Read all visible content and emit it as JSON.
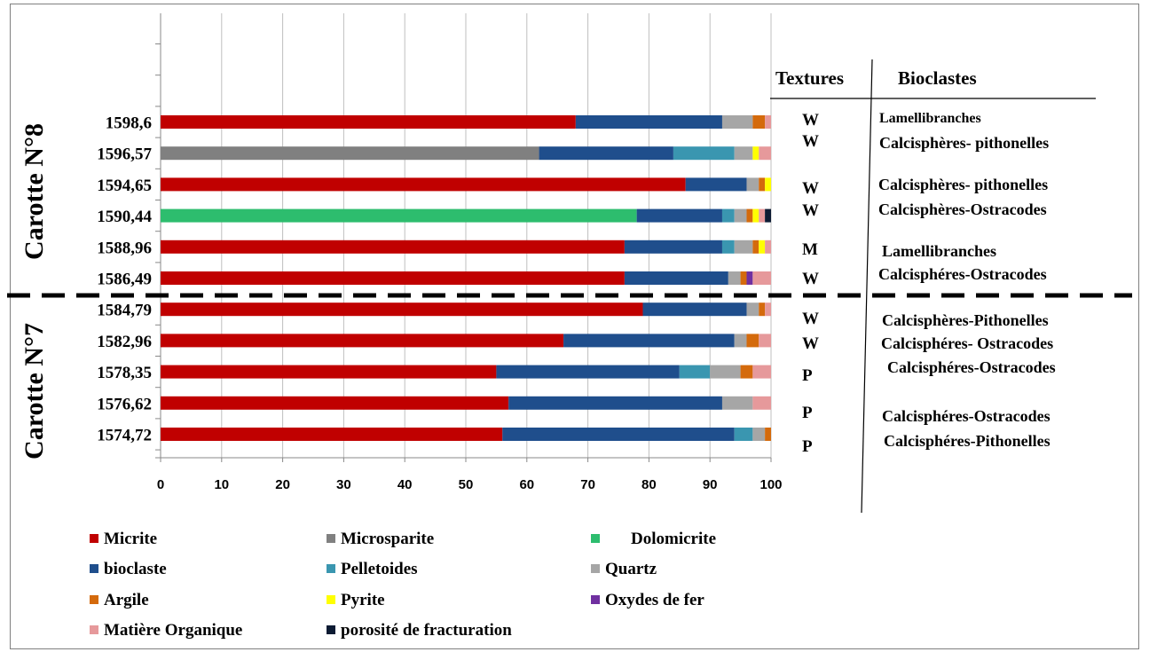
{
  "chart_data": {
    "type": "bar",
    "orientation": "horizontal",
    "stacked": true,
    "categories": [
      "1598,6",
      "1596,57",
      "1594,65",
      "1590,44",
      "1588,96",
      "1586,49",
      "1584,79",
      "1582,96",
      "1578,35",
      "1576,62",
      "1574,72"
    ],
    "xlim": [
      0,
      100
    ],
    "xticks": [
      "0",
      "10",
      "20",
      "30",
      "40",
      "50",
      "60",
      "70",
      "80",
      "90",
      "100"
    ],
    "grid": "vertical",
    "legend_position": "bottom",
    "series": [
      {
        "name": "Micrite",
        "color": "#c00000",
        "values": [
          68,
          0,
          86,
          0,
          76,
          76,
          79,
          66,
          55,
          57,
          56
        ]
      },
      {
        "name": "Microsparite",
        "color": "#808080",
        "values": [
          0,
          62,
          0,
          0,
          0,
          0,
          0,
          0,
          0,
          0,
          0
        ]
      },
      {
        "name": "Dolomicrite",
        "color": "#2dbd6e",
        "values": [
          0,
          0,
          0,
          78,
          0,
          0,
          0,
          0,
          0,
          0,
          0
        ]
      },
      {
        "name": "bioclaste",
        "color": "#1f4e8c",
        "values": [
          24,
          22,
          10,
          14,
          16,
          17,
          17,
          28,
          30,
          35,
          38
        ]
      },
      {
        "name": "Pelletoides",
        "color": "#3a96b0",
        "values": [
          0,
          10,
          0,
          2,
          2,
          0,
          0,
          0,
          5,
          0,
          3
        ]
      },
      {
        "name": "Quartz",
        "color": "#a6a6a6",
        "values": [
          5,
          3,
          2,
          2,
          3,
          2,
          2,
          2,
          5,
          5,
          2
        ]
      },
      {
        "name": "Argile",
        "color": "#d46a0c",
        "values": [
          2,
          0,
          1,
          1,
          1,
          1,
          1,
          2,
          2,
          0,
          1
        ]
      },
      {
        "name": "Pyrite",
        "color": "#ffff00",
        "values": [
          0,
          1,
          1,
          1,
          1,
          0,
          0,
          0,
          0,
          0,
          0
        ]
      },
      {
        "name": "Oxydes de fer",
        "color": "#7030a0",
        "values": [
          0,
          0,
          0,
          0,
          0,
          1,
          0,
          0,
          0,
          0,
          0
        ]
      },
      {
        "name": "Matière Organique",
        "color": "#e6999b",
        "values": [
          1,
          2,
          0,
          1,
          1,
          3,
          1,
          2,
          3,
          3,
          0
        ]
      },
      {
        "name": "porosité de fracturation",
        "color": "#0d1b33",
        "values": [
          0,
          0,
          0,
          1,
          0,
          0,
          0,
          0,
          0,
          0,
          0
        ]
      }
    ],
    "core_labels": [
      "Carotte N°8",
      "Carotte N°7"
    ]
  },
  "table": {
    "headers": {
      "textures": "Textures",
      "bioclastes": "Bioclastes"
    },
    "textures": [
      "W",
      "W",
      "W",
      "W",
      "M",
      "W",
      "W",
      "W",
      "P",
      "P",
      "P"
    ],
    "bioclastes": [
      "Lamellibranches",
      "Calcisphères- pithonelles",
      "Calcisphères- pithonelles",
      "Calcisphères-Ostracodes",
      "Lamellibranches",
      "Calcisphéres-Ostracodes",
      "Calcisphères-Pithonelles",
      "Calcisphéres- Ostracodes",
      "Calcisphéres-Ostracodes",
      "Calcisphéres-Ostracodes",
      "Calcisphéres-Pithonelles"
    ]
  }
}
